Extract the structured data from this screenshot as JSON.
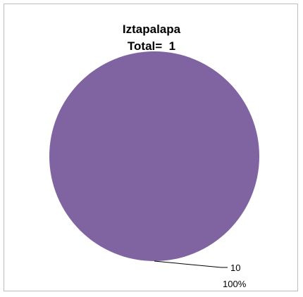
{
  "chart_data": {
    "type": "pie",
    "title": "Iztapalapa",
    "subtitle": "Total=  1",
    "categories": [
      "10"
    ],
    "values": [
      1
    ],
    "percent_labels": [
      "100%"
    ],
    "colors": [
      "#8064a2"
    ],
    "legend": "none"
  }
}
